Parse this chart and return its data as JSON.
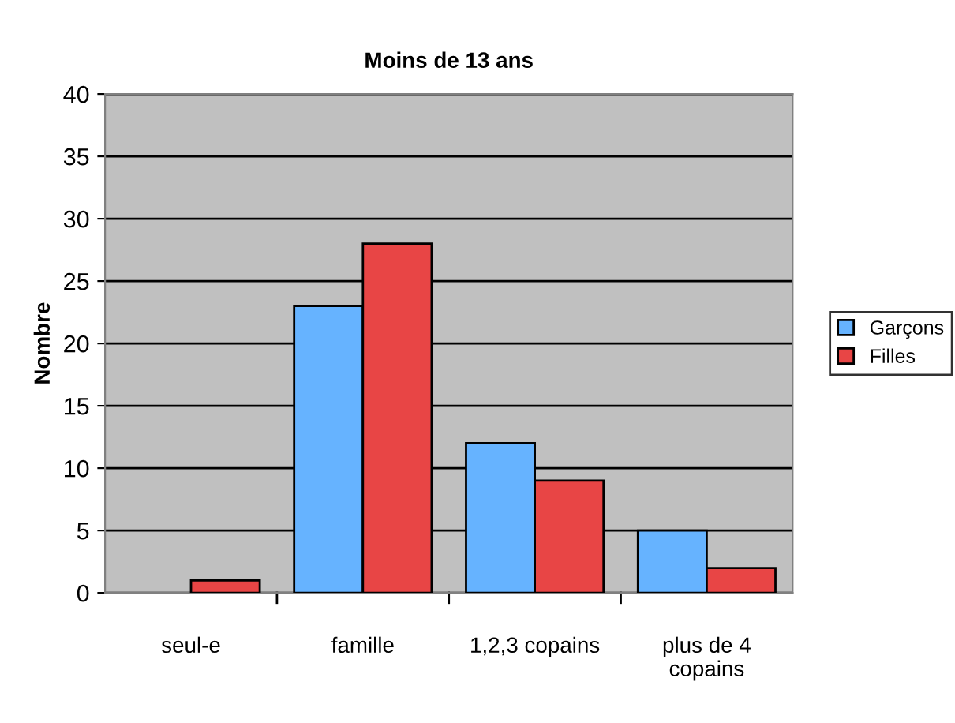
{
  "chart_data": {
    "type": "bar",
    "title": "Moins de 13 ans",
    "ylabel": "Nombre",
    "categories": [
      "seul-e",
      "famille",
      "1,2,3 copains",
      "plus de 4\ncopains"
    ],
    "series": [
      {
        "name": "Garçons",
        "color": "#66b3ff",
        "values": [
          null,
          23,
          12,
          5
        ]
      },
      {
        "name": "Filles",
        "color": "#e84545",
        "values": [
          1,
          28,
          9,
          2
        ]
      }
    ],
    "ylim": [
      0,
      40
    ],
    "yticks": [
      0,
      5,
      10,
      15,
      20,
      25,
      30,
      35,
      40
    ],
    "grid": "y",
    "legend": "right"
  }
}
